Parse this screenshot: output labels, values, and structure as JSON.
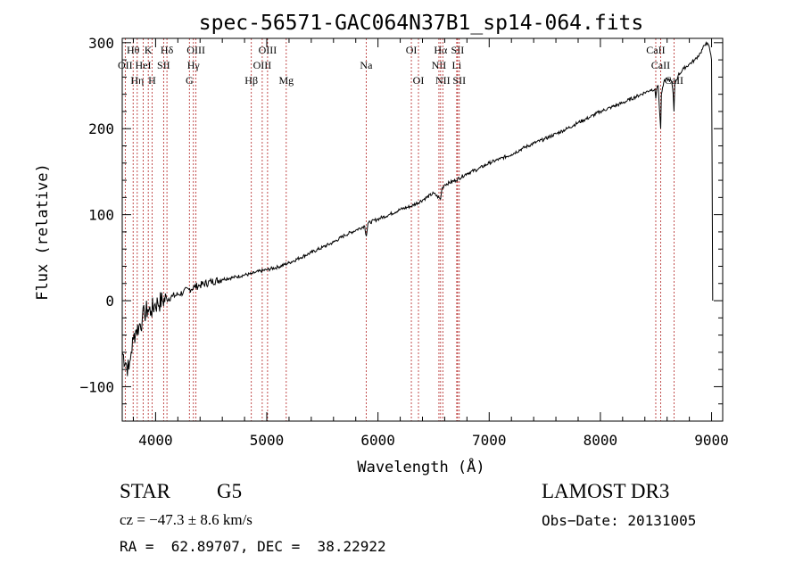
{
  "chart_data": {
    "type": "line",
    "title": "spec-56571-GAC064N37B1_sp14-064.fits",
    "xlabel": "Wavelength (Å)",
    "ylabel": "Flux (relative)",
    "xlim": [
      3700,
      9100
    ],
    "ylim": [
      -140,
      305
    ],
    "x_ticks": [
      4000,
      5000,
      6000,
      7000,
      8000,
      9000
    ],
    "y_ticks": [
      -100,
      0,
      100,
      200,
      300
    ],
    "grid": false,
    "line_color": "#000000",
    "marker_color": "#b22222",
    "series": [
      {
        "name": "spectrum",
        "x": [
          3700,
          3740,
          3760,
          3780,
          3800,
          3820,
          3850,
          3880,
          3900,
          3930,
          3960,
          3990,
          4020,
          4060,
          4100,
          4150,
          4200,
          4250,
          4300,
          4350,
          4400,
          4500,
          4600,
          4700,
          4800,
          4860,
          4900,
          5000,
          5100,
          5200,
          5300,
          5400,
          5500,
          5600,
          5700,
          5800,
          5880,
          5895,
          5910,
          6000,
          6100,
          6200,
          6300,
          6400,
          6500,
          6562,
          6575,
          6600,
          6700,
          6800,
          6900,
          7000,
          7100,
          7200,
          7300,
          7400,
          7500,
          7600,
          7700,
          7800,
          7900,
          8000,
          8100,
          8200,
          8300,
          8400,
          8450,
          8490,
          8498,
          8506,
          8520,
          8535,
          8542,
          8549,
          8570,
          8600,
          8640,
          8655,
          8662,
          8669,
          8700,
          8750,
          8800,
          8850,
          8900,
          8950,
          8980,
          9000,
          9010
        ],
        "y": [
          -60,
          -75,
          -80,
          -60,
          -45,
          -35,
          -30,
          -22,
          -15,
          -10,
          -12,
          -5,
          -3,
          0,
          2,
          5,
          7,
          10,
          13,
          16,
          18,
          22,
          25,
          27,
          30,
          31,
          33,
          36,
          39,
          44,
          50,
          56,
          62,
          68,
          76,
          82,
          87,
          75,
          90,
          95,
          100,
          106,
          110,
          117,
          125,
          118,
          130,
          135,
          140,
          148,
          153,
          160,
          165,
          170,
          177,
          183,
          188,
          194,
          200,
          207,
          213,
          220,
          225,
          230,
          236,
          242,
          245,
          246,
          235,
          246,
          250,
          215,
          200,
          240,
          254,
          258,
          255,
          240,
          220,
          252,
          262,
          270,
          275,
          280,
          288,
          300,
          295,
          280,
          0
        ]
      }
    ],
    "lines": [
      {
        "label": "OII",
        "wave": 3727,
        "row": 2
      },
      {
        "label": "Hθ",
        "wave": 3798,
        "row": 1
      },
      {
        "label": "Hη",
        "wave": 3835,
        "row": 3
      },
      {
        "label": "HeI",
        "wave": 3889,
        "row": 2
      },
      {
        "label": "K",
        "wave": 3934,
        "row": 1
      },
      {
        "label": "H",
        "wave": 3968,
        "row": 3
      },
      {
        "label": "SII",
        "wave": 4072,
        "row": 2
      },
      {
        "label": "Hδ",
        "wave": 4102,
        "row": 1
      },
      {
        "label": "G",
        "wave": 4304,
        "row": 3
      },
      {
        "label": "Hγ",
        "wave": 4340,
        "row": 2
      },
      {
        "label": "OIII",
        "wave": 4363,
        "row": 1
      },
      {
        "label": "Hβ",
        "wave": 4861,
        "row": 3
      },
      {
        "label": "OIII",
        "wave": 4959,
        "row": 2
      },
      {
        "label": "OIII",
        "wave": 5007,
        "row": 1
      },
      {
        "label": "Mg",
        "wave": 5175,
        "row": 3
      },
      {
        "label": "Na",
        "wave": 5894,
        "row": 2
      },
      {
        "label": "OI",
        "wave": 6300,
        "row": 1
      },
      {
        "label": "OI",
        "wave": 6364,
        "row": 3
      },
      {
        "label": "NII",
        "wave": 6548,
        "row": 2
      },
      {
        "label": "Hα",
        "wave": 6563,
        "row": 1
      },
      {
        "label": "NII",
        "wave": 6583,
        "row": 3
      },
      {
        "label": "Li",
        "wave": 6708,
        "row": 2
      },
      {
        "label": "SII",
        "wave": 6716,
        "row": 1
      },
      {
        "label": "SII",
        "wave": 6731,
        "row": 3
      },
      {
        "label": "CaII",
        "wave": 8498,
        "row": 1
      },
      {
        "label": "CaII",
        "wave": 8542,
        "row": 2
      },
      {
        "label": "CaII",
        "wave": 8662,
        "row": 3
      }
    ]
  },
  "info": {
    "object_type": "STAR",
    "subclass": "G5",
    "survey": "LAMOST DR3",
    "cz_line": "cz = −47.3 ± 8.6 km/s",
    "obs_date": "Obs−Date: 20131005",
    "coords": "RA =  62.89707, DEC =  38.22922"
  }
}
